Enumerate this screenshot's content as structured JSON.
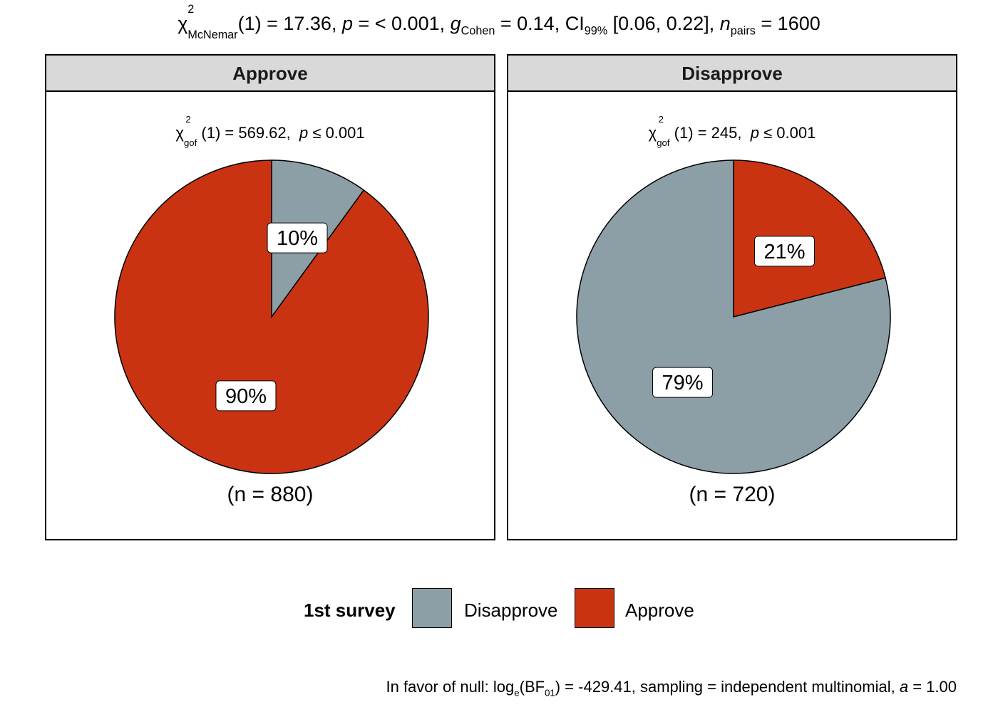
{
  "title": {
    "test": "McNemar",
    "df": "(1)",
    "statistic": "17.36",
    "p_text": "< 0.001",
    "effect_label": "Cohen",
    "effect_value": "0.14",
    "ci_label": "99%",
    "ci": "[0.06, 0.22]",
    "n_label": "pairs",
    "n_value": "1600"
  },
  "legend": {
    "title": "1st survey",
    "items": [
      "Disapprove",
      "Approve"
    ]
  },
  "caption": {
    "prefix": "In favor of null: log",
    "base": "e",
    "bf": "BF",
    "bf_sub": "01",
    "value": "-429.41",
    "rest": ", sampling = independent multinomial,",
    "a_value": "1.00"
  },
  "colors": {
    "Disapprove": "#8c9fa6",
    "Approve": "#c93312"
  },
  "chart_data": [
    {
      "type": "pie",
      "facet": "Approve",
      "subtitle": {
        "stat": "569.62",
        "p": "0.001"
      },
      "n_text": "(n = 880)",
      "slices": [
        {
          "category": "Disapprove",
          "percent": 10,
          "label": "10%"
        },
        {
          "category": "Approve",
          "percent": 90,
          "label": "90%"
        }
      ]
    },
    {
      "type": "pie",
      "facet": "Disapprove",
      "subtitle": {
        "stat": "245",
        "p": "0.001"
      },
      "n_text": "(n = 720)",
      "slices": [
        {
          "category": "Approve",
          "percent": 21,
          "label": "21%"
        },
        {
          "category": "Disapprove",
          "percent": 79,
          "label": "79%"
        }
      ]
    }
  ]
}
